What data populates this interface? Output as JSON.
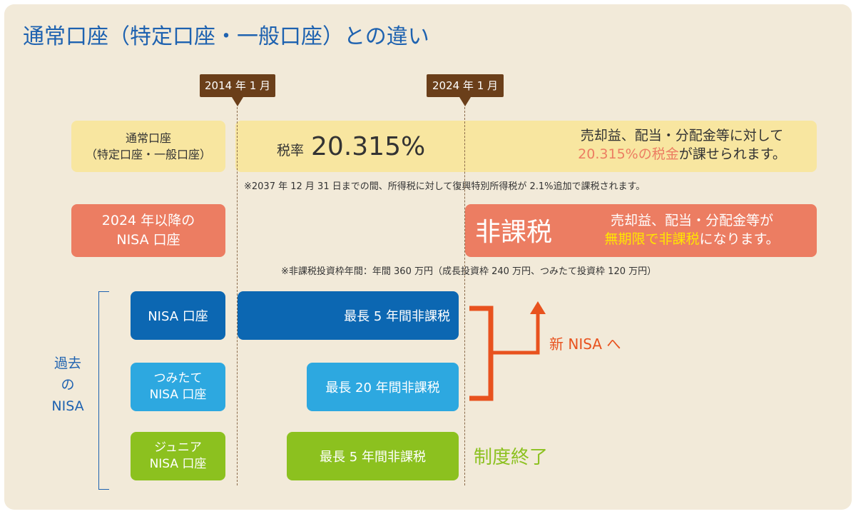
{
  "title": "通常口座（特定口座・一般口座）との違い",
  "dates": [
    {
      "label": "2014 年 1 月"
    },
    {
      "label": "2024 年 1 月"
    }
  ],
  "regular": {
    "label_line1": "通常口座",
    "label_line2": "（特定口座・一般口座）",
    "rate_prefix": "税率",
    "rate_value": "20.315%",
    "desc_line1": "売却益、配当・分配金等に対して",
    "desc_highlight": "20.315%の税金",
    "desc_line2_rest": "が課せられます。",
    "note": "※2037 年 12 月 31 日までの間、所得税に対して復興特別所得税が 2.1%追加で課税されます。"
  },
  "new_nisa": {
    "label_line1": "2024 年以降の",
    "label_line2": "NISA 口座",
    "tax_free": "非課税",
    "desc_line1": "売却益、配当・分配金等が",
    "desc_highlight": "無期限で非課税",
    "desc_line2_rest": "になります。",
    "note": "※非課税投資枠年間：年間 360 万円（成長投資枠 240 万円、つみたて投資枠 120 万円）"
  },
  "past_nisa": {
    "side_label": [
      "過去",
      "の",
      "NISA"
    ],
    "rows": [
      {
        "label_line1": "NISA 口座",
        "label_line2": "",
        "bar": "最長 5 年間非課税"
      },
      {
        "label_line1": "つみたて",
        "label_line2": "NISA 口座",
        "bar": "最長 20 年間非課税"
      },
      {
        "label_line1": "ジュニア",
        "label_line2": "NISA 口座",
        "bar": "最長 5 年間非課税"
      }
    ],
    "to_new": "新 NISA へ",
    "ended": "制度終了"
  },
  "colors": {
    "title": "#1e62b0",
    "highlight_red": "#ec7d62",
    "highlight_yellow": "#ffe600",
    "arrow_orange": "#e8521e",
    "ended_green": "#8cc11f"
  }
}
